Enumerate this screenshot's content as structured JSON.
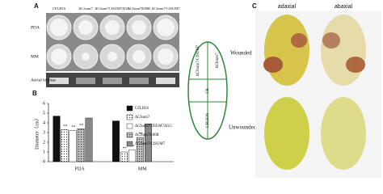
{
  "panel_a": {
    "label": "A",
    "columns": [
      "CFLH16",
      "ΔCfsum7",
      "ΔCfsum7CfSUM7ΔGG",
      "ΔCfsum7K80R",
      "ΔCfsum7/CfSUM7"
    ],
    "rows": [
      "PDA",
      "MM",
      "Aerial hyphae"
    ]
  },
  "chart_data": {
    "type": "bar",
    "label": "B",
    "y_label": "Diameter（cm）",
    "categories": [
      "PDA",
      "MM"
    ],
    "series": [
      {
        "name": "CFLH16",
        "color": "#111111",
        "pattern": "solid",
        "values": [
          4.7,
          4.2
        ]
      },
      {
        "name": "ΔCfsum7",
        "color": "#ffffff",
        "pattern": "dots",
        "values": [
          3.3,
          1.0
        ],
        "significance": [
          "**",
          "**"
        ]
      },
      {
        "name": "ΔCfsum7CfSUM7ΔGG",
        "color": "#ffffff",
        "pattern": "solid",
        "values": [
          3.2,
          1.2
        ],
        "significance": [
          "**",
          "**"
        ]
      },
      {
        "name": "ΔCfsum7K80R",
        "color": "#bbbbbb",
        "pattern": "dots",
        "values": [
          3.4,
          2.5
        ],
        "significance": [
          "**",
          "**"
        ]
      },
      {
        "name": "ΔCfsum7/CfSUM7",
        "color": "#888888",
        "pattern": "solid",
        "values": [
          4.5,
          3.9
        ]
      }
    ],
    "ylim": [
      0,
      6
    ],
    "yticks": [
      0,
      1,
      2,
      3,
      4,
      5,
      6
    ],
    "legend": "upper right"
  },
  "diagram": {
    "segments": [
      "ΔCfsum7/CfSUM7",
      "ΔCfsum7",
      "CK",
      "CFLH16"
    ],
    "side_labels": [
      "Wounded",
      "Unwounded"
    ]
  },
  "panel_c": {
    "label": "C",
    "columns": [
      "adaxial",
      "abaxial"
    ]
  }
}
